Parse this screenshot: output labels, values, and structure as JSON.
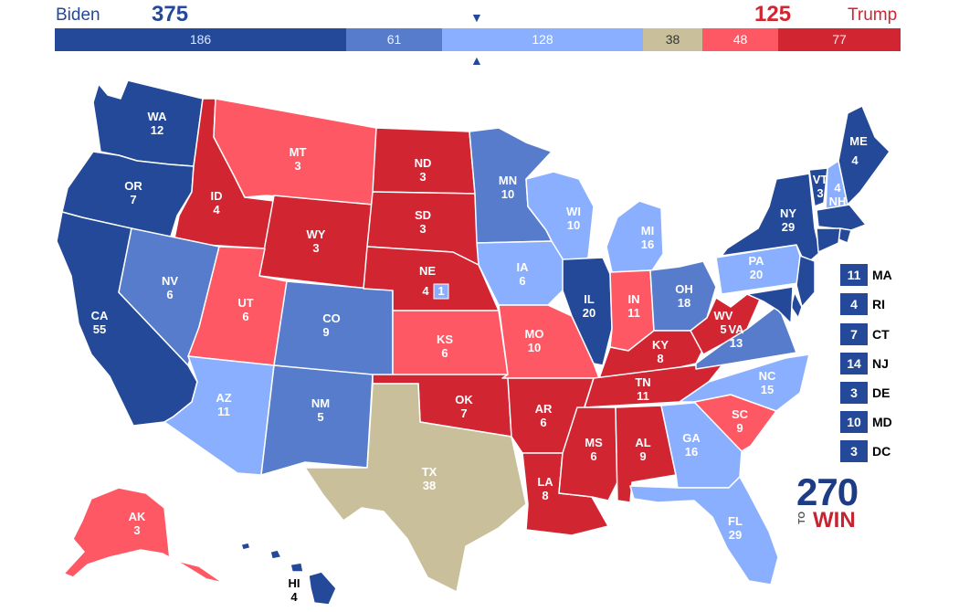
{
  "header": {
    "biden_name": "Biden",
    "biden_total": "375",
    "trump_name": "Trump",
    "trump_total": "125",
    "arrow_down": "▼",
    "arrow_up": "▲"
  },
  "bar": [
    {
      "name": "safe-dem",
      "value": "186",
      "color": "#244999"
    },
    {
      "name": "likely-dem",
      "value": "61",
      "color": "#577ccc"
    },
    {
      "name": "lean-dem",
      "value": "128",
      "color": "#8aafff"
    },
    {
      "name": "tossup",
      "value": "38",
      "color": "#c9c09b"
    },
    {
      "name": "lean-rep",
      "value": "48",
      "color": "#ff5865"
    },
    {
      "name": "safe-rep",
      "value": "77",
      "color": "#d22532"
    }
  ],
  "colors": {
    "safe_dem": "#244999",
    "likely_dem": "#577ccc",
    "lean_dem": "#8aafff",
    "tossup": "#c9c09b",
    "lean_rep": "#ff5865",
    "safe_rep": "#d22532"
  },
  "states": {
    "WA": {
      "abbr": "WA",
      "ev": "12"
    },
    "OR": {
      "abbr": "OR",
      "ev": "7"
    },
    "CA": {
      "abbr": "CA",
      "ev": "55"
    },
    "ID": {
      "abbr": "ID",
      "ev": "4"
    },
    "NV": {
      "abbr": "NV",
      "ev": "6"
    },
    "MT": {
      "abbr": "MT",
      "ev": "3"
    },
    "WY": {
      "abbr": "WY",
      "ev": "3"
    },
    "UT": {
      "abbr": "UT",
      "ev": "6"
    },
    "AZ": {
      "abbr": "AZ",
      "ev": "11"
    },
    "CO": {
      "abbr": "CO",
      "ev": "9"
    },
    "NM": {
      "abbr": "NM",
      "ev": "5"
    },
    "ND": {
      "abbr": "ND",
      "ev": "3"
    },
    "SD": {
      "abbr": "SD",
      "ev": "3"
    },
    "NE": {
      "abbr": "NE",
      "ev": "4",
      "ev2": "1"
    },
    "KS": {
      "abbr": "KS",
      "ev": "6"
    },
    "OK": {
      "abbr": "OK",
      "ev": "7"
    },
    "TX": {
      "abbr": "TX",
      "ev": "38"
    },
    "MN": {
      "abbr": "MN",
      "ev": "10"
    },
    "IA": {
      "abbr": "IA",
      "ev": "6"
    },
    "MO": {
      "abbr": "MO",
      "ev": "10"
    },
    "AR": {
      "abbr": "AR",
      "ev": "6"
    },
    "LA": {
      "abbr": "LA",
      "ev": "8"
    },
    "WI": {
      "abbr": "WI",
      "ev": "10"
    },
    "IL": {
      "abbr": "IL",
      "ev": "20"
    },
    "MI": {
      "abbr": "MI",
      "ev": "16"
    },
    "IN": {
      "abbr": "IN",
      "ev": "11"
    },
    "OH": {
      "abbr": "OH",
      "ev": "18"
    },
    "KY": {
      "abbr": "KY",
      "ev": "8"
    },
    "TN": {
      "abbr": "TN",
      "ev": "11"
    },
    "MS": {
      "abbr": "MS",
      "ev": "6"
    },
    "AL": {
      "abbr": "AL",
      "ev": "9"
    },
    "GA": {
      "abbr": "GA",
      "ev": "16"
    },
    "FL": {
      "abbr": "FL",
      "ev": "29"
    },
    "SC": {
      "abbr": "SC",
      "ev": "9"
    },
    "NC": {
      "abbr": "NC",
      "ev": "15"
    },
    "VA": {
      "abbr": "VA",
      "ev": "13"
    },
    "WV": {
      "abbr": "WV",
      "ev": "5"
    },
    "PA": {
      "abbr": "PA",
      "ev": "20"
    },
    "NY": {
      "abbr": "NY",
      "ev": "29"
    },
    "VT": {
      "abbr": "VT",
      "ev": "3"
    },
    "NH": {
      "abbr": "NH",
      "ev": "4"
    },
    "ME": {
      "abbr": "ME",
      "ev": "4"
    },
    "AK": {
      "abbr": "AK",
      "ev": "3"
    },
    "HI": {
      "abbr": "HI",
      "ev": "4"
    }
  },
  "small_states": [
    {
      "abbr": "MA",
      "ev": "11"
    },
    {
      "abbr": "RI",
      "ev": "4"
    },
    {
      "abbr": "CT",
      "ev": "7"
    },
    {
      "abbr": "NJ",
      "ev": "14"
    },
    {
      "abbr": "DE",
      "ev": "3"
    },
    {
      "abbr": "MD",
      "ev": "10"
    },
    {
      "abbr": "DC",
      "ev": "3"
    }
  ],
  "logo": {
    "number": "270",
    "to": "TO",
    "win": "WIN"
  }
}
